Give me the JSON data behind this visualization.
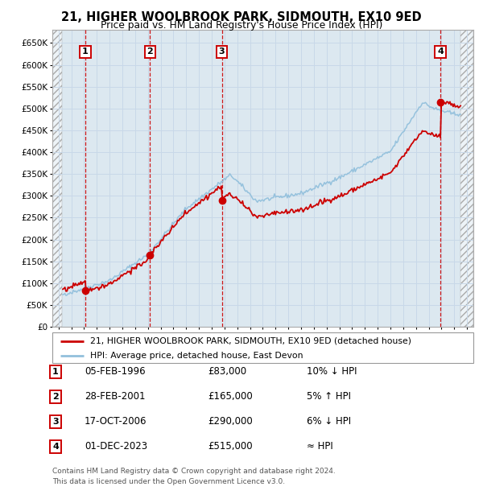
{
  "title": "21, HIGHER WOOLBROOK PARK, SIDMOUTH, EX10 9ED",
  "subtitle": "Price paid vs. HM Land Registry's House Price Index (HPI)",
  "legend_line1": "21, HIGHER WOOLBROOK PARK, SIDMOUTH, EX10 9ED (detached house)",
  "legend_line2": "HPI: Average price, detached house, East Devon",
  "footer1": "Contains HM Land Registry data © Crown copyright and database right 2024.",
  "footer2": "This data is licensed under the Open Government Licence v3.0.",
  "sale_points": [
    {
      "num": 1,
      "year": 1996.09,
      "price": 83000,
      "date": "05-FEB-1996",
      "label": "£83,000",
      "note": "10% ↓ HPI"
    },
    {
      "num": 2,
      "year": 2001.16,
      "price": 165000,
      "date": "28-FEB-2001",
      "label": "£165,000",
      "note": "5% ↑ HPI"
    },
    {
      "num": 3,
      "year": 2006.79,
      "price": 290000,
      "date": "17-OCT-2006",
      "label": "£290,000",
      "note": "6% ↓ HPI"
    },
    {
      "num": 4,
      "year": 2023.92,
      "price": 515000,
      "date": "01-DEC-2023",
      "label": "£515,000",
      "note": "≈ HPI"
    }
  ],
  "ylim": [
    0,
    680000
  ],
  "xlim": [
    1993.5,
    2026.5
  ],
  "yticks": [
    0,
    50000,
    100000,
    150000,
    200000,
    250000,
    300000,
    350000,
    400000,
    450000,
    500000,
    550000,
    600000,
    650000
  ],
  "ytick_labels": [
    "£0",
    "£50K",
    "£100K",
    "£150K",
    "£200K",
    "£250K",
    "£300K",
    "£350K",
    "£400K",
    "£450K",
    "£500K",
    "£550K",
    "£600K",
    "£650K"
  ],
  "xticks": [
    1994,
    1995,
    1996,
    1997,
    1998,
    1999,
    2000,
    2001,
    2002,
    2003,
    2004,
    2005,
    2006,
    2007,
    2008,
    2009,
    2010,
    2011,
    2012,
    2013,
    2014,
    2015,
    2016,
    2017,
    2018,
    2019,
    2020,
    2021,
    2022,
    2023,
    2024,
    2025,
    2026
  ],
  "red_color": "#cc0000",
  "blue_color": "#92c0dc",
  "hatch_color": "#aaaaaa",
  "grid_color": "#c8d8e8",
  "bg_plot": "#dce8f0",
  "hatch_left_end": 1994.3,
  "hatch_right_start": 2025.5
}
